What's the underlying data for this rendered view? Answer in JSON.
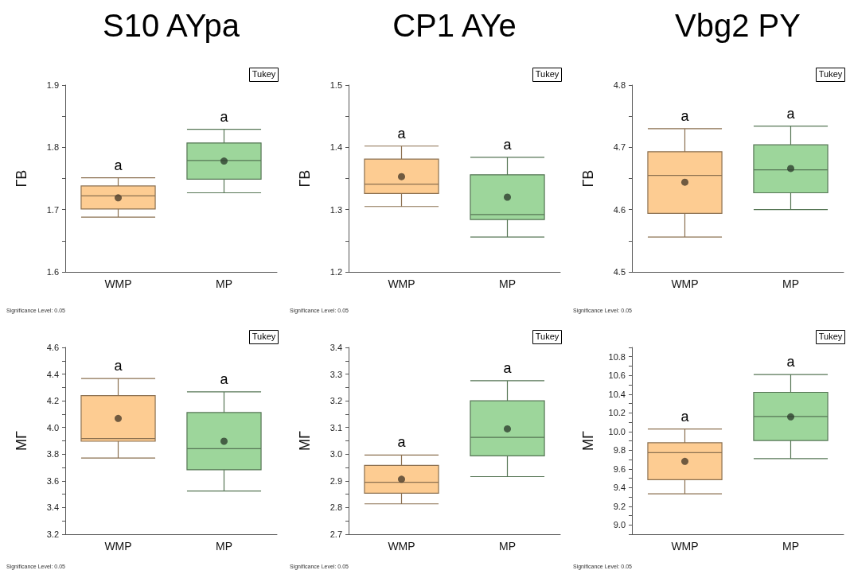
{
  "chart_data": [
    {
      "type": "box",
      "title": "S10 AYpa",
      "ylabel": "ГВ",
      "categories": [
        "WMP",
        "MP"
      ],
      "colors": [
        "#fdcc92",
        "#9dd69b"
      ],
      "boxes": [
        {
          "low": 1.688,
          "q1": 1.701,
          "median": 1.722,
          "q3": 1.738,
          "high": 1.751,
          "mean": 1.719
        },
        {
          "low": 1.727,
          "q1": 1.749,
          "median": 1.779,
          "q3": 1.807,
          "high": 1.829,
          "mean": 1.778
        }
      ],
      "ylim": [
        1.6,
        1.9
      ],
      "yticks": [
        1.6,
        {
          "value": 1.65,
          "label": null
        },
        1.7,
        {
          "value": 1.75,
          "label": null
        },
        1.8,
        {
          "value": 1.85,
          "label": null
        },
        1.9
      ],
      "grid": false,
      "annotations": [
        "Tukey",
        "Significance Level: 0.05",
        "a",
        "a"
      ]
    },
    {
      "type": "box",
      "title": "CP1 AYe",
      "ylabel": "ГВ",
      "categories": [
        "WMP",
        "MP"
      ],
      "colors": [
        "#fdcc92",
        "#9dd69b"
      ],
      "boxes": [
        {
          "low": 1.305,
          "q1": 1.326,
          "median": 1.341,
          "q3": 1.381,
          "high": 1.402,
          "mean": 1.353
        },
        {
          "low": 1.256,
          "q1": 1.284,
          "median": 1.292,
          "q3": 1.356,
          "high": 1.384,
          "mean": 1.32
        }
      ],
      "ylim": [
        1.2,
        1.5
      ],
      "yticks": [
        1.2,
        {
          "value": 1.25,
          "label": null
        },
        1.3,
        {
          "value": 1.35,
          "label": null
        },
        1.4,
        {
          "value": 1.45,
          "label": null
        },
        1.5
      ],
      "grid": false,
      "annotations": [
        "Tukey",
        "Significance Level: 0.05",
        "a",
        "a"
      ]
    },
    {
      "type": "box",
      "title": "Vbg2 PY",
      "ylabel": "ГВ",
      "categories": [
        "WMP",
        "MP"
      ],
      "colors": [
        "#fdcc92",
        "#9dd69b"
      ],
      "boxes": [
        {
          "low": 4.556,
          "q1": 4.594,
          "median": 4.655,
          "q3": 4.693,
          "high": 4.73,
          "mean": 4.644
        },
        {
          "low": 4.6,
          "q1": 4.627,
          "median": 4.664,
          "q3": 4.704,
          "high": 4.734,
          "mean": 4.666
        }
      ],
      "ylim": [
        4.5,
        4.8
      ],
      "yticks": [
        4.5,
        {
          "value": 4.55,
          "label": null
        },
        4.6,
        {
          "value": 4.65,
          "label": null
        },
        4.7,
        {
          "value": 4.75,
          "label": null
        },
        4.8
      ],
      "grid": false,
      "annotations": [
        "Tukey",
        "Significance Level: 0.05",
        "a",
        "a"
      ]
    },
    {
      "type": "box",
      "ylabel": "МГ",
      "categories": [
        "WMP",
        "MP"
      ],
      "colors": [
        "#fdcc92",
        "#9dd69b"
      ],
      "boxes": [
        {
          "low": 3.771,
          "q1": 3.897,
          "median": 3.917,
          "q3": 4.239,
          "high": 4.367,
          "mean": 4.068
        },
        {
          "low": 3.524,
          "q1": 3.683,
          "median": 3.841,
          "q3": 4.112,
          "high": 4.267,
          "mean": 3.897
        }
      ],
      "ylim": [
        3.2,
        4.6
      ],
      "yticks": [
        3.2,
        {
          "value": 3.3,
          "label": null
        },
        3.4,
        {
          "value": 3.5,
          "label": null
        },
        3.6,
        {
          "value": 3.7,
          "label": null
        },
        3.8,
        {
          "value": 3.9,
          "label": null
        },
        {
          "value": 4,
          "label": "4.0"
        },
        {
          "value": 4.1,
          "label": null
        },
        4.2,
        {
          "value": 4.3,
          "label": null
        },
        4.4,
        {
          "value": 4.5,
          "label": null
        },
        4.6
      ],
      "grid": false,
      "annotations": [
        "Tukey",
        "Significance Level: 0.05",
        "a",
        "a"
      ]
    },
    {
      "type": "box",
      "ylabel": "МГ",
      "categories": [
        "WMP",
        "MP"
      ],
      "colors": [
        "#fdcc92",
        "#9dd69b"
      ],
      "boxes": [
        {
          "low": 2.814,
          "q1": 2.854,
          "median": 2.895,
          "q3": 2.958,
          "high": 2.997,
          "mean": 2.906
        },
        {
          "low": 2.916,
          "q1": 2.994,
          "median": 3.063,
          "q3": 3.2,
          "high": 3.275,
          "mean": 3.095
        }
      ],
      "ylim": [
        2.7,
        3.4
      ],
      "yticks": [
        2.7,
        {
          "value": 2.75,
          "label": null
        },
        2.8,
        {
          "value": 2.85,
          "label": null
        },
        2.9,
        {
          "value": 2.95,
          "label": null
        },
        {
          "value": 3,
          "label": "3.0"
        },
        {
          "value": 3.05,
          "label": null
        },
        3.1,
        {
          "value": 3.15,
          "label": null
        },
        3.2,
        {
          "value": 3.25,
          "label": null
        },
        3.3,
        {
          "value": 3.35,
          "label": null
        },
        3.4
      ],
      "grid": false,
      "annotations": [
        "Tukey",
        "Significance Level: 0.05",
        "a",
        "a"
      ]
    },
    {
      "type": "box",
      "ylabel": "МГ",
      "categories": [
        "WMP",
        "MP"
      ],
      "colors": [
        "#fdcc92",
        "#9dd69b"
      ],
      "boxes": [
        {
          "low": 9.333,
          "q1": 9.484,
          "median": 9.774,
          "q3": 9.879,
          "high": 10.027,
          "mean": 9.68
        },
        {
          "low": 9.71,
          "q1": 9.904,
          "median": 10.16,
          "q3": 10.419,
          "high": 10.609,
          "mean": 10.157
        }
      ],
      "ylim": [
        8.9,
        10.9
      ],
      "yticks": [
        {
          "value": 8.9,
          "label": null
        },
        {
          "value": 9,
          "label": "9.0"
        },
        {
          "value": 9.1,
          "label": null
        },
        9.2,
        {
          "value": 9.3,
          "label": null
        },
        9.4,
        {
          "value": 9.5,
          "label": null
        },
        9.6,
        {
          "value": 9.7,
          "label": null
        },
        9.8,
        {
          "value": 9.9,
          "label": null
        },
        {
          "value": 10,
          "label": "10.0"
        },
        {
          "value": 10.1,
          "label": null
        },
        10.2,
        {
          "value": 10.3,
          "label": null
        },
        10.4,
        {
          "value": 10.5,
          "label": null
        },
        10.6,
        {
          "value": 10.7,
          "label": null
        },
        10.8,
        {
          "value": 10.9,
          "label": null
        }
      ],
      "grid": false,
      "annotations": [
        "Tukey",
        "Significance Level: 0.05",
        "a",
        "a"
      ]
    }
  ]
}
